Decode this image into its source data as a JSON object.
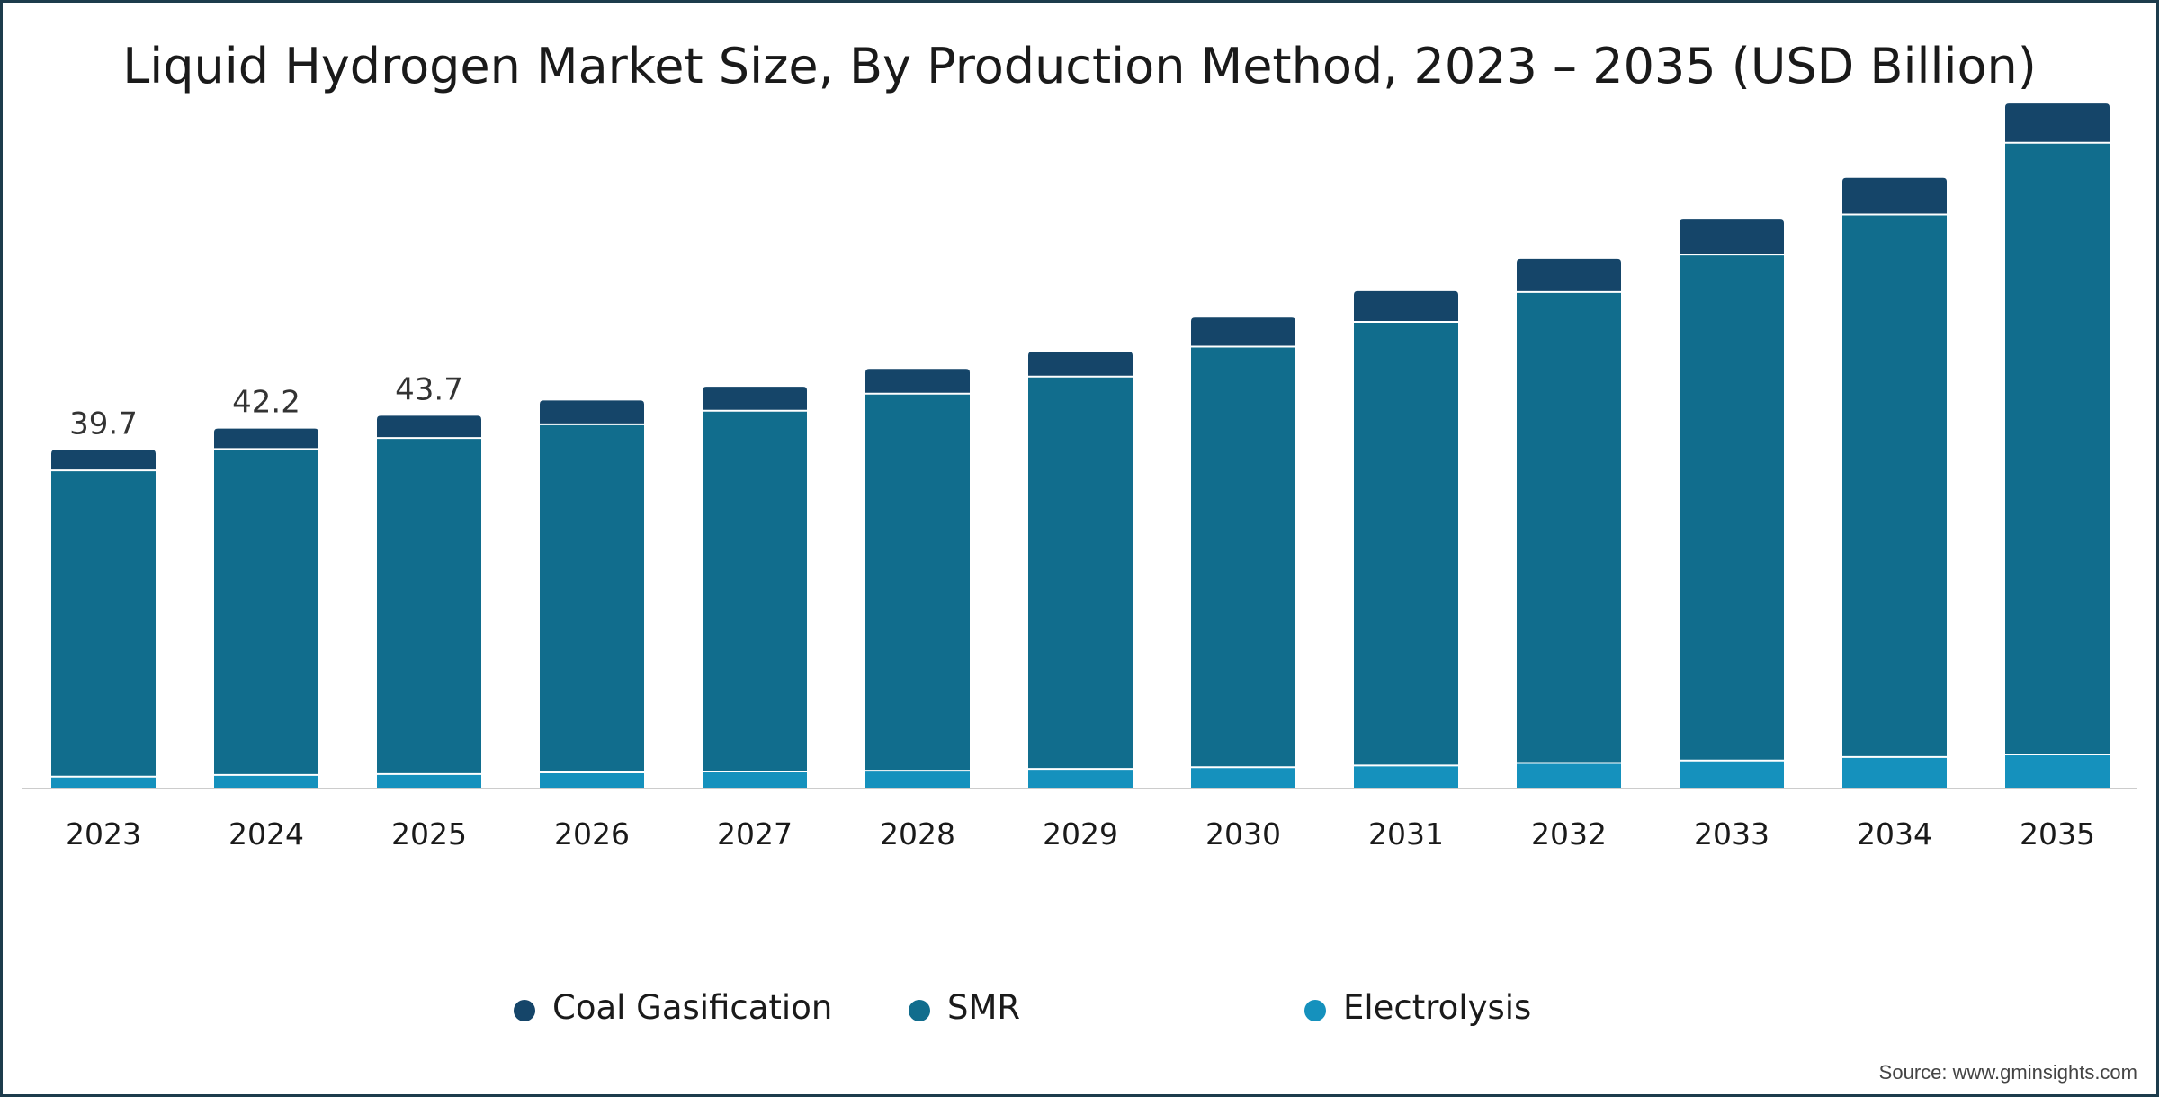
{
  "chart_data": {
    "type": "bar",
    "stacked": true,
    "title": "Liquid Hydrogen Market Size, By Production Method, 2023 – 2035 (USD Billion)",
    "xlabel": "",
    "ylabel": "",
    "ylim": [
      0,
      80
    ],
    "grid": false,
    "legend_position": "bottom",
    "categories": [
      "2023",
      "2024",
      "2025",
      "2026",
      "2027",
      "2028",
      "2029",
      "2030",
      "2031",
      "2032",
      "2033",
      "2034",
      "2035"
    ],
    "series": [
      {
        "name": "Electrolysis",
        "color": "#1591bd",
        "values": [
          1.4,
          1.6,
          1.7,
          1.9,
          2.0,
          2.1,
          2.3,
          2.5,
          2.7,
          3.0,
          3.3,
          3.7,
          4.0
        ]
      },
      {
        "name": "SMR",
        "color": "#116d8d",
        "values": [
          35.9,
          38.2,
          39.4,
          40.8,
          42.3,
          44.2,
          46.0,
          49.3,
          52.0,
          55.2,
          59.3,
          63.6,
          71.7
        ]
      },
      {
        "name": "Coal Gasification",
        "color": "#154569",
        "values": [
          2.4,
          2.4,
          2.6,
          2.8,
          2.8,
          2.9,
          2.9,
          3.4,
          3.6,
          3.9,
          4.1,
          4.3,
          4.6
        ]
      }
    ],
    "data_labels": [
      {
        "category": "2023",
        "text": "39.7"
      },
      {
        "category": "2024",
        "text": "42.2"
      },
      {
        "category": "2025",
        "text": "43.7"
      }
    ],
    "legend": [
      {
        "name": "Coal Gasification",
        "color": "#154569"
      },
      {
        "name": "SMR",
        "color": "#116d8d"
      },
      {
        "name": "Electrolysis",
        "color": "#1591bd"
      }
    ]
  },
  "source": "Source: www.gminsights.com",
  "colors": {
    "baseline": "#cccccc",
    "border": "#1d3c4c",
    "separator": "#ffffff"
  }
}
